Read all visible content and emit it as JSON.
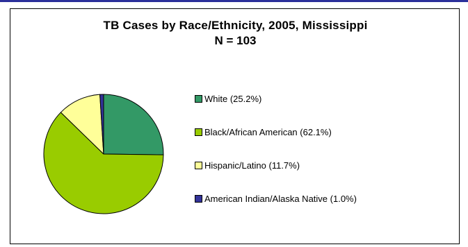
{
  "chart_data": {
    "type": "pie",
    "title": "TB Cases by Race/Ethnicity, 2005, Mississippi",
    "subtitle": "N = 103",
    "legend_position": "right",
    "slices": [
      {
        "label": "White (25.2%)",
        "value": 25.2,
        "color": "#339966"
      },
      {
        "label": "Black/African American (62.1%)",
        "value": 62.1,
        "color": "#99cc00"
      },
      {
        "label": "Hispanic/Latino (11.7%)",
        "value": 11.7,
        "color": "#ffff99"
      },
      {
        "label": "American Indian/Alaska Native (1.0%)",
        "value": 1.0,
        "color": "#333399"
      }
    ]
  }
}
